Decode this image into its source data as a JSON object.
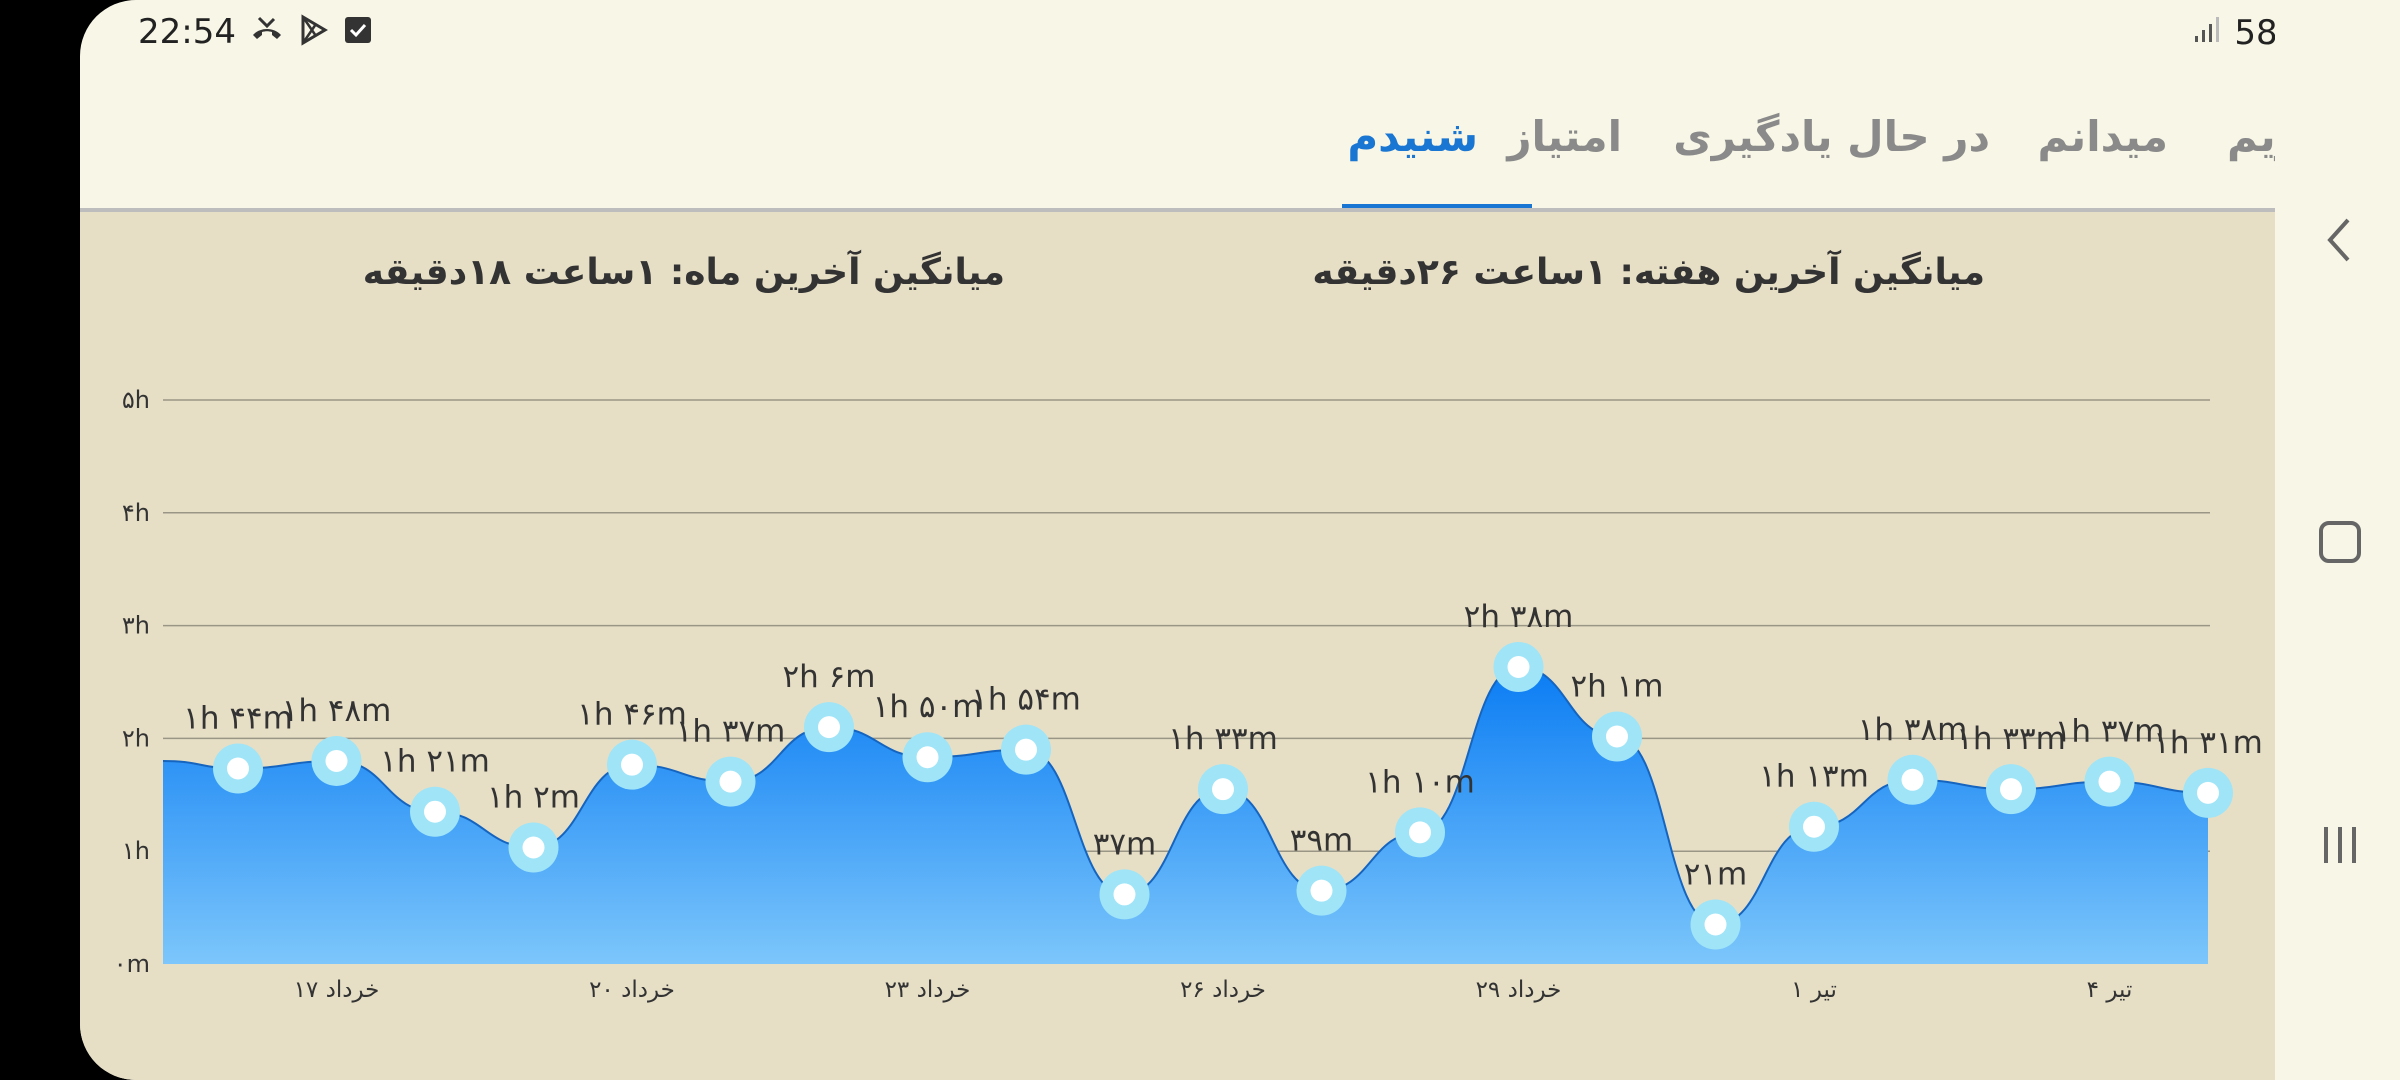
{
  "status_bar": {
    "time": "22:54",
    "battery": "58%",
    "left_icons": [
      "missed-call-icon",
      "play-store-icon",
      "checkbox-icon"
    ],
    "right_icons": [
      "signal-icon",
      "battery-icon"
    ]
  },
  "tabs": [
    {
      "label": "تقویم",
      "active": false
    },
    {
      "label": "میدانم",
      "active": false
    },
    {
      "label": "در حال یادگیری",
      "active": false
    },
    {
      "label": "امتیاز",
      "active": false
    },
    {
      "label": "شنیدم",
      "active": true
    }
  ],
  "averages": {
    "week": "میانگین آخرین هفته: ۱ساعت ۲۶دقیقه",
    "month": "میانگین آخرین ماه: ۱ساعت ۱۸دقیقه"
  },
  "colors": {
    "accent": "#1976d2",
    "area_top": "#0a7cf3",
    "area_bottom": "#7cc6fb",
    "point_ring": "#9fe4f7",
    "background": "#e6dfc6"
  },
  "chart_data": {
    "type": "area",
    "ylim": [
      0,
      5
    ],
    "y_ticks": [
      "۰m",
      "۱h",
      "۲h",
      "۳h",
      "۴h",
      "۵h"
    ],
    "x_tick_labels": [
      {
        "index": 1,
        "label": "۱۷ خرداد"
      },
      {
        "index": 4,
        "label": "۲۰ خرداد"
      },
      {
        "index": 7,
        "label": "۲۳ خرداد"
      },
      {
        "index": 10,
        "label": "۲۶ خرداد"
      },
      {
        "index": 13,
        "label": "۲۹ خرداد"
      },
      {
        "index": 16,
        "label": "۱ تیر"
      },
      {
        "index": 19,
        "label": "۴ تیر"
      }
    ],
    "start_value": 1.8,
    "points": [
      {
        "value": 1.733,
        "label": "۱h ۴۴m"
      },
      {
        "value": 1.8,
        "label": "۱h ۴۸m"
      },
      {
        "value": 1.35,
        "label": "۱h ۲۱m"
      },
      {
        "value": 1.033,
        "label": "۱h ۲m"
      },
      {
        "value": 1.767,
        "label": "۱h ۴۶m"
      },
      {
        "value": 1.617,
        "label": "۱h ۳۷m"
      },
      {
        "value": 2.1,
        "label": "۲h ۶m"
      },
      {
        "value": 1.833,
        "label": "۱h ۵۰m"
      },
      {
        "value": 1.9,
        "label": "۱h ۵۴m"
      },
      {
        "value": 0.617,
        "label": "۳۷m"
      },
      {
        "value": 1.55,
        "label": "۱h ۳۳m"
      },
      {
        "value": 0.65,
        "label": "۳۹m"
      },
      {
        "value": 1.167,
        "label": "۱h ۱۰m"
      },
      {
        "value": 2.633,
        "label": "۲h ۳۸m"
      },
      {
        "value": 2.017,
        "label": "۲h ۱m"
      },
      {
        "value": 0.35,
        "label": "۲۱m"
      },
      {
        "value": 1.217,
        "label": "۱h ۱۳m"
      },
      {
        "value": 1.633,
        "label": "۱h ۳۸m"
      },
      {
        "value": 1.55,
        "label": "۱h ۳۳m"
      },
      {
        "value": 1.617,
        "label": "۱h ۳۷m"
      },
      {
        "value": 1.517,
        "label": "۱h ۳۱m"
      }
    ]
  }
}
